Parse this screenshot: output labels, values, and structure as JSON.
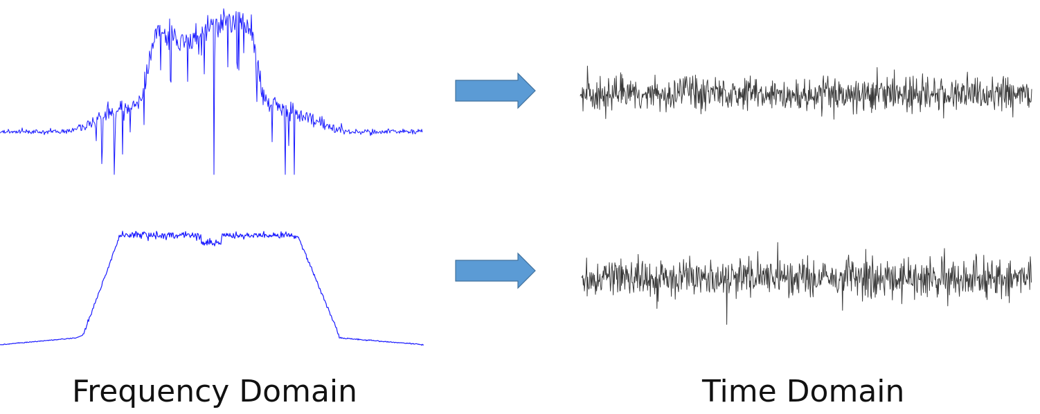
{
  "captions": {
    "frequency": "Frequency Domain",
    "time": "Time Domain"
  },
  "colors": {
    "spectrum": "#1a1aff",
    "time_signal": "#3a3a3a",
    "arrow_fill": "#5b9bd5",
    "arrow_stroke": "#41719c"
  },
  "rows": [
    {
      "spectrum_shape": "wideband-with-notches",
      "arrow": "right-arrow-icon",
      "time_signal": "noise-like-waveform"
    },
    {
      "spectrum_shape": "flat-top-band",
      "arrow": "right-arrow-icon",
      "time_signal": "noise-like-waveform"
    }
  ]
}
